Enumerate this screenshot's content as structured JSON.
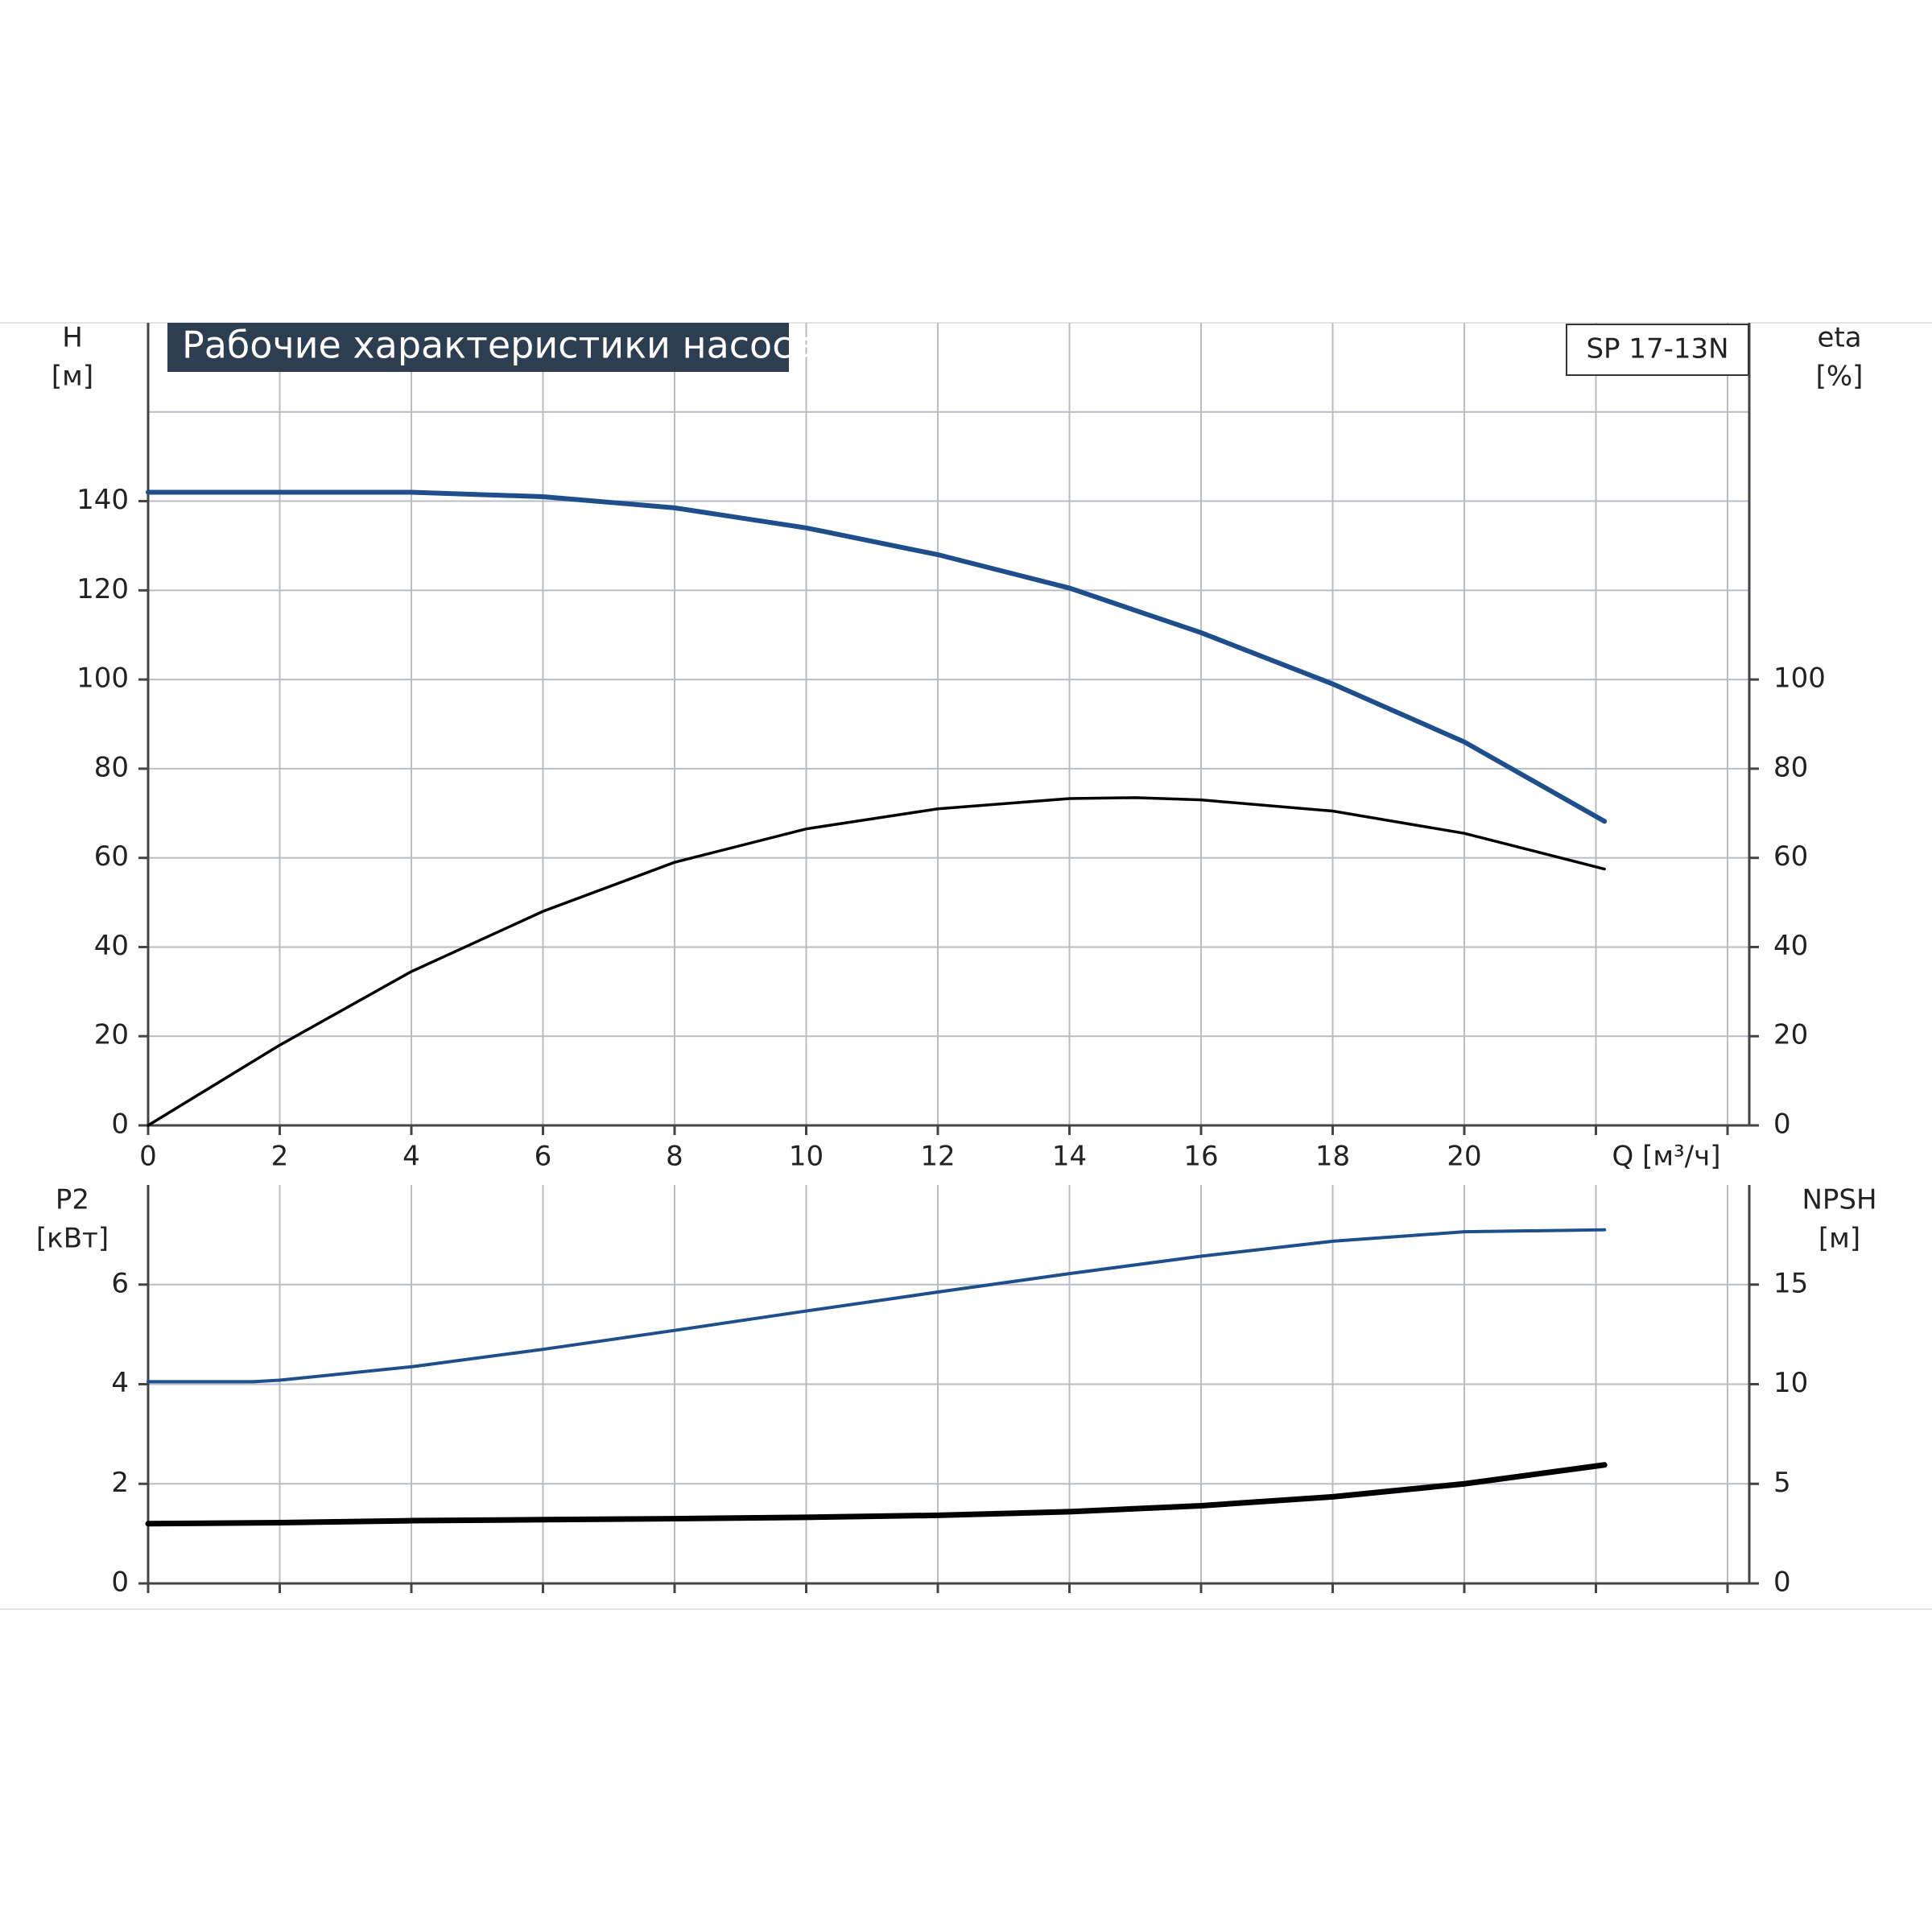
{
  "chart_data": [
    {
      "type": "line",
      "title": "Рабочие характеристики насоса",
      "annotation": "SP 17-13N",
      "ylabel": [
        "H",
        "[м]"
      ],
      "y2label": [
        "eta",
        "[%]"
      ],
      "xlabel": "Q [м³/ч]",
      "xlim": [
        0,
        24.33
      ],
      "xticks": [
        0,
        2,
        4,
        6,
        8,
        10,
        12,
        14,
        16,
        18,
        20
      ],
      "ylim": [
        0,
        180
      ],
      "yticks": [
        0,
        20,
        40,
        60,
        80,
        100,
        120,
        140
      ],
      "y2lim": [
        0,
        180
      ],
      "y2ticks": [
        0,
        20,
        40,
        60,
        80,
        100
      ],
      "grid": true,
      "series": [
        {
          "name": "H",
          "color": "#1f4e8c",
          "x": [
            0,
            1.6,
            2,
            4,
            6,
            8,
            10,
            12,
            14,
            16,
            18,
            20,
            22.13
          ],
          "values": [
            142,
            142,
            142,
            142,
            141,
            138.5,
            134,
            128,
            120.5,
            110.5,
            99,
            86,
            68.2
          ]
        },
        {
          "name": "eta",
          "color": "#000000",
          "axis": "y2",
          "x": [
            0,
            2,
            4,
            6,
            8,
            10,
            12,
            14,
            15,
            16,
            18,
            20,
            22.13
          ],
          "values": [
            0,
            18,
            34.5,
            48,
            59,
            66.5,
            71,
            73.3,
            73.5,
            73,
            70.5,
            65.5,
            57.5
          ]
        }
      ]
    },
    {
      "type": "line",
      "ylabel": [
        "P2",
        "[кВт]"
      ],
      "y2label": [
        "NPSH",
        "[м]"
      ],
      "xlim": [
        0,
        24.33
      ],
      "xticks": [
        0,
        2,
        4,
        6,
        8,
        10,
        12,
        14,
        16,
        18,
        20
      ],
      "ylim": [
        0,
        8
      ],
      "yticks": [
        0,
        2,
        4,
        6
      ],
      "y2lim": [
        0,
        20
      ],
      "y2ticks": [
        0,
        5,
        10,
        15
      ],
      "grid": true,
      "series": [
        {
          "name": "P2",
          "color": "#1f4e8c",
          "x": [
            0,
            1.6,
            2,
            4,
            6,
            8,
            10,
            12,
            14,
            16,
            18,
            20,
            22.13
          ],
          "values": [
            4.05,
            4.05,
            4.08,
            4.35,
            4.7,
            5.08,
            5.47,
            5.85,
            6.22,
            6.57,
            6.87,
            7.06,
            7.1
          ]
        },
        {
          "name": "NPSH",
          "color": "#000000",
          "axis": "y2",
          "x": [
            0,
            2,
            4,
            6,
            8,
            10,
            12,
            14,
            16,
            18,
            20,
            22.13
          ],
          "values": [
            3.0,
            3.05,
            3.15,
            3.2,
            3.25,
            3.32,
            3.42,
            3.6,
            3.9,
            4.35,
            5.0,
            5.95
          ]
        }
      ]
    }
  ]
}
